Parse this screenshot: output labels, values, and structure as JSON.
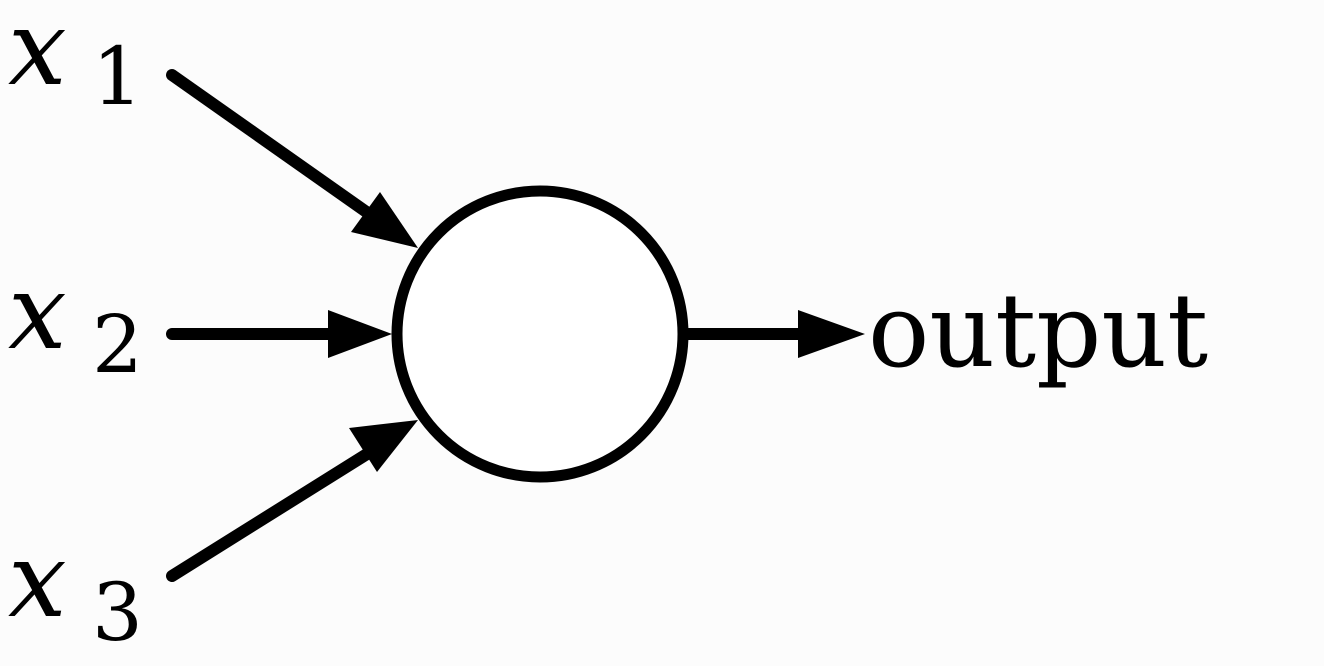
{
  "inputs": [
    {
      "variable": "x",
      "subscript": "1"
    },
    {
      "variable": "x",
      "subscript": "2"
    },
    {
      "variable": "x",
      "subscript": "3"
    }
  ],
  "output_label": "output",
  "colors": {
    "background": "#fcfcfc",
    "ink": "#000000",
    "node_fill": "#ffffff"
  }
}
